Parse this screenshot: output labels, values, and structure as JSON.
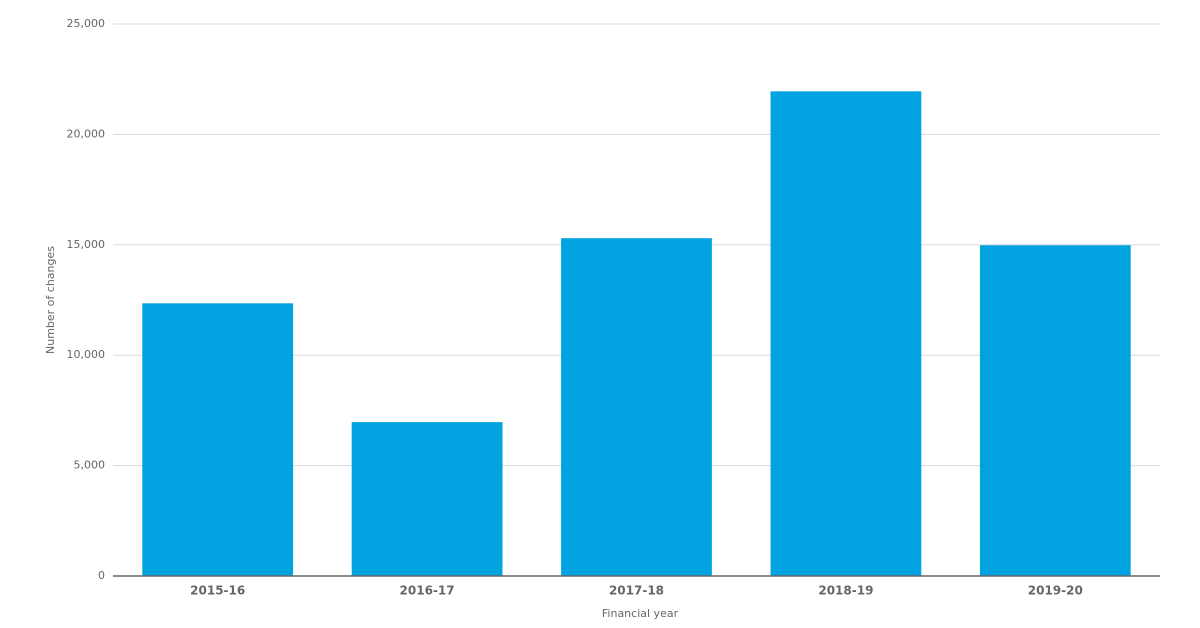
{
  "chart_data": {
    "type": "bar",
    "x_label": "Financial year",
    "y_label": "Number of changes",
    "categories": [
      "2015-16",
      "2016-17",
      "2017-18",
      "2018-19",
      "2019-20"
    ],
    "values": [
      12350,
      6970,
      15300,
      21950,
      14980
    ],
    "color": "#00a3e0",
    "ylim": [
      0,
      25000
    ],
    "yticks": [
      0,
      {
        "value": 5000,
        "label": "5,000"
      },
      {
        "value": 10000,
        "label": "10,000"
      },
      {
        "value": 15000,
        "label": "15,000"
      },
      {
        "value": 20000,
        "label": "20,000"
      },
      {
        "value": 25000,
        "label": "25,000"
      }
    ],
    "grid": true
  }
}
